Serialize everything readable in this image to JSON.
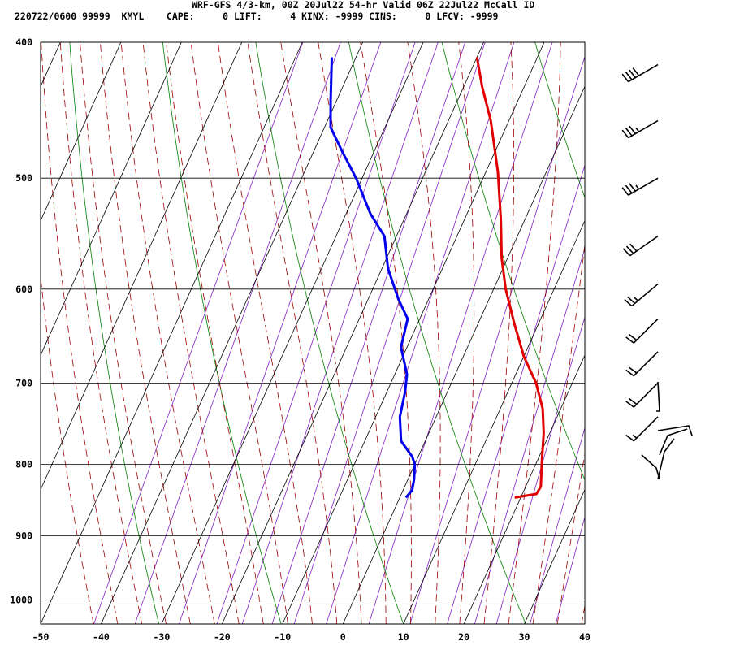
{
  "header": {
    "title": "WRF-GFS 4/3-km, 00Z 20Jul22 54-hr Valid 06Z 22Jul22 McCall ID",
    "info": "220722/0600 99999  KMYL    CAPE:     0 LIFT:     4 KINX: -9999 CINS:     0 LFCV: -9999"
  },
  "chart_data": {
    "type": "line",
    "x_ticks": [
      -50,
      -40,
      -30,
      -20,
      -10,
      0,
      10,
      20,
      30,
      40
    ],
    "y_ticks": [
      400,
      500,
      600,
      700,
      800,
      900,
      1000
    ],
    "xlim": [
      -50,
      40
    ],
    "ylim": [
      1040,
      400
    ],
    "log_y": true,
    "series": [
      {
        "color": "#e00000",
        "points": [
          [
            -20,
            410
          ],
          [
            -17,
            430
          ],
          [
            -13,
            455
          ],
          [
            -8,
            495
          ],
          [
            -4,
            535
          ],
          [
            -1,
            570
          ],
          [
            2,
            600
          ],
          [
            6,
            635
          ],
          [
            10,
            670
          ],
          [
            14,
            700
          ],
          [
            17,
            730
          ],
          [
            19,
            760
          ],
          [
            20.5,
            790
          ],
          [
            21.5,
            810
          ],
          [
            22.5,
            830
          ],
          [
            22.3,
            840
          ],
          [
            19,
            845
          ]
        ]
      },
      {
        "color": "#0000ee",
        "points": [
          [
            -44,
            410
          ],
          [
            -41,
            440
          ],
          [
            -39,
            460
          ],
          [
            -35,
            480
          ],
          [
            -31,
            500
          ],
          [
            -26,
            530
          ],
          [
            -22,
            550
          ],
          [
            -19,
            580
          ],
          [
            -15,
            610
          ],
          [
            -12,
            630
          ],
          [
            -11,
            660
          ],
          [
            -8,
            690
          ],
          [
            -7,
            710
          ],
          [
            -6,
            740
          ],
          [
            -4,
            770
          ],
          [
            -1,
            790
          ],
          [
            0,
            800
          ],
          [
            1,
            820
          ],
          [
            1.5,
            835
          ],
          [
            1,
            845
          ]
        ]
      }
    ],
    "wind_barbs": [
      {
        "p": 415,
        "dir": 240,
        "spd": 40
      },
      {
        "p": 455,
        "dir": 240,
        "spd": 35
      },
      {
        "p": 500,
        "dir": 240,
        "spd": 35
      },
      {
        "p": 550,
        "dir": 235,
        "spd": 30
      },
      {
        "p": 595,
        "dir": 230,
        "spd": 25
      },
      {
        "p": 630,
        "dir": 225,
        "spd": 20
      },
      {
        "p": 665,
        "dir": 225,
        "spd": 20
      },
      {
        "p": 700,
        "dir": 225,
        "spd": 20
      },
      {
        "p": 740,
        "dir": 225,
        "spd": 15
      }
    ],
    "background_lines": {
      "isotherm_color": "#000000",
      "dry_adiabat_color": "#008000",
      "moist_adiabat_color": "#990000",
      "mixing_ratio_color": "#8020c0"
    }
  }
}
